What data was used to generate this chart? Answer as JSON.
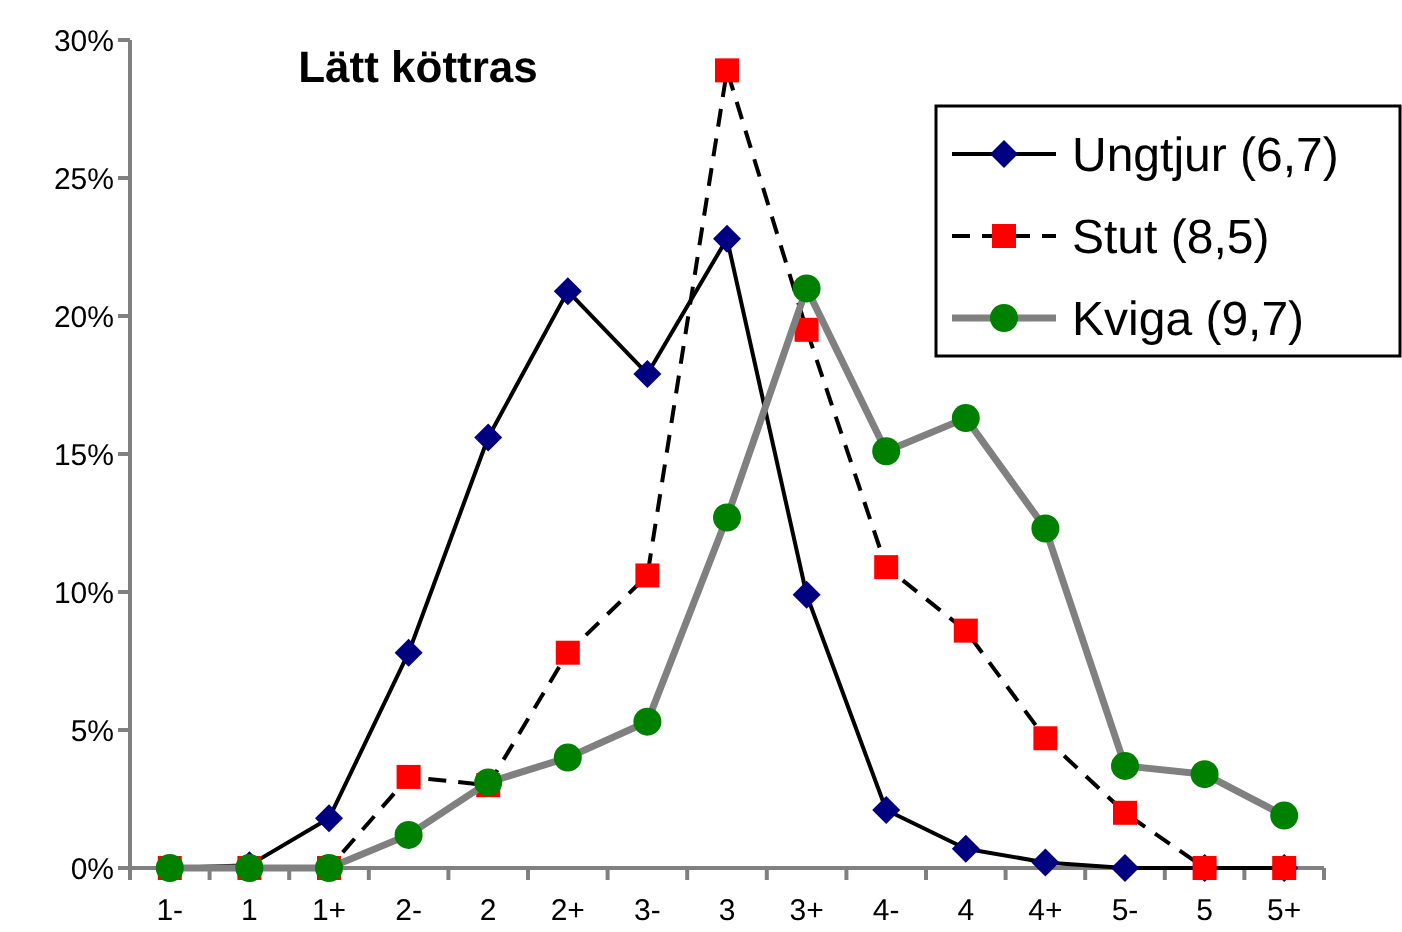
{
  "chart_data": {
    "type": "line",
    "title": "Lätt köttras",
    "categories": [
      "1-",
      "1",
      "1+",
      "2-",
      "2",
      "2+",
      "3-",
      "3",
      "3+",
      "4-",
      "4",
      "4+",
      "5-",
      "5",
      "5+"
    ],
    "ylim": [
      0,
      30
    ],
    "yticks": [
      {
        "value": 0,
        "label": "0%"
      },
      {
        "value": 5,
        "label": "5%"
      },
      {
        "value": 10,
        "label": "10%"
      },
      {
        "value": 15,
        "label": "15%"
      },
      {
        "value": 20,
        "label": "20%"
      },
      {
        "value": 25,
        "label": "25%"
      },
      {
        "value": 30,
        "label": "30%"
      }
    ],
    "legend": "top right",
    "grid": false,
    "series": [
      {
        "name": "Ungtjur (6,7)",
        "color": "#000080",
        "marker": "diamond",
        "line_style": "solid",
        "values": [
          0,
          0.1,
          1.8,
          7.8,
          15.6,
          20.9,
          17.9,
          22.8,
          9.9,
          2.1,
          0.7,
          0.2,
          0,
          0,
          0
        ]
      },
      {
        "name": "Stut (8,5)",
        "color": "#ff0000",
        "marker": "square",
        "line_style": "dashed",
        "values": [
          0,
          0,
          0,
          3.3,
          3.0,
          7.8,
          10.6,
          28.9,
          19.5,
          10.9,
          8.6,
          4.7,
          2.0,
          0,
          0
        ]
      },
      {
        "name": "Kviga (9,7)",
        "color": "#008000",
        "marker": "circle",
        "line_style": "solid",
        "values": [
          0,
          0,
          0,
          1.2,
          3.1,
          4.0,
          5.3,
          12.7,
          21.0,
          15.1,
          16.3,
          12.3,
          3.7,
          3.4,
          1.9
        ]
      }
    ]
  }
}
